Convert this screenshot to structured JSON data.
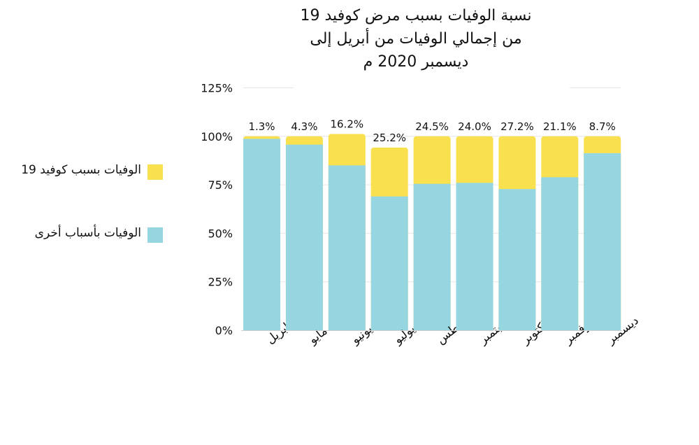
{
  "chart_data": {
    "type": "bar",
    "stacked": true,
    "title_lines": [
      "نسبة الوفيات بسبب مرض كوفيد 19",
      "من إجمالي الوفيات من أبريل إلى",
      "ديسمبر 2020 م"
    ],
    "categories": [
      "ابريل",
      "مايو",
      "يونيو",
      "يوليو",
      "اغسطس",
      "سبتمبر",
      "اكتوبر",
      "نوفمبر",
      "ديسمبر"
    ],
    "series": [
      {
        "name": "الوفيات بأسباب أخرى",
        "color": "#95d6e0",
        "values": [
          98.7,
          95.7,
          85.0,
          69.0,
          75.5,
          76.0,
          72.8,
          78.9,
          91.3
        ]
      },
      {
        "name": "الوفيات بسبب كوفيد 19",
        "color": "#f9e04e",
        "values": [
          1.3,
          4.3,
          16.2,
          25.2,
          24.5,
          24.0,
          27.2,
          21.1,
          8.7
        ]
      }
    ],
    "data_labels": [
      "1.3%",
      "4.3%",
      "16.2%",
      "25.2%",
      "24.5%",
      "24.0%",
      "27.2%",
      "21.1%",
      "8.7%"
    ],
    "yticks": [
      0,
      25,
      50,
      75,
      100,
      125
    ],
    "ytick_labels": [
      "0%",
      "25%",
      "50%",
      "75%",
      "100%",
      "125%"
    ],
    "ylim": [
      0,
      125
    ],
    "grid": true,
    "legend_position": "left"
  }
}
